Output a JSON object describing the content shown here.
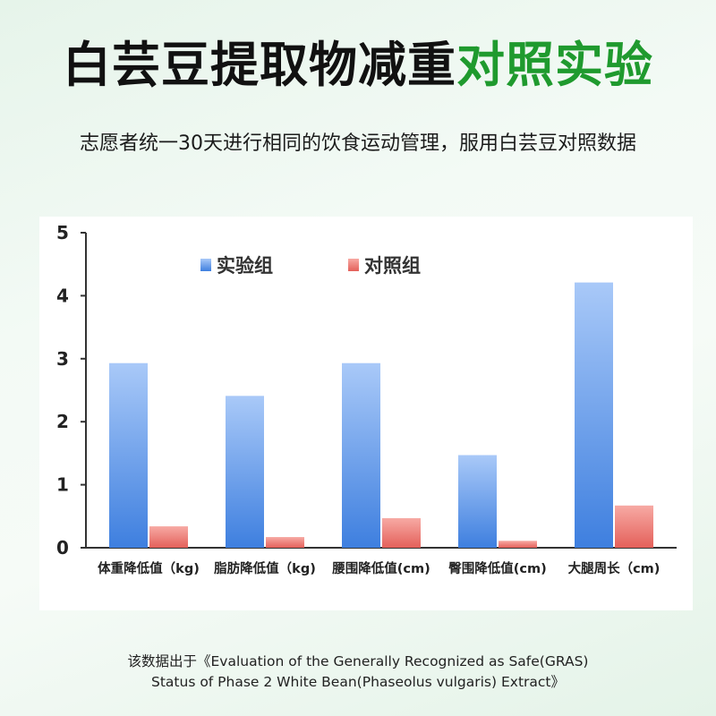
{
  "header": {
    "title_black": "白芸豆提取物减重",
    "title_green": "对照实验",
    "subtitle": "志愿者统一30天进行相同的饮食运动管理，服用白芸豆对照数据"
  },
  "colors": {
    "title_green": "#1f9a2e",
    "experimental_top": "#a9c9f8",
    "experimental_bottom": "#3e7fdf",
    "control_top": "#f7aaa4",
    "control_bottom": "#e4605a"
  },
  "chart_data": {
    "type": "bar",
    "categories": [
      "体重降低值（kg)",
      "脂肪降低值（kg)",
      "腰围降低值(cm)",
      "臀围降低值(cm)",
      "大腿周长（cm)"
    ],
    "series": [
      {
        "name": "实验组",
        "values": [
          2.93,
          2.41,
          2.93,
          1.47,
          4.21
        ]
      },
      {
        "name": "对照组",
        "values": [
          0.34,
          0.17,
          0.47,
          0.11,
          0.67
        ]
      }
    ],
    "yticks": [
      "0",
      "1",
      "2",
      "3",
      "4",
      "5"
    ],
    "ylim": [
      0,
      5
    ],
    "legend_position": "top-left",
    "grid": false
  },
  "footnote": {
    "line1": "该数据出于《Evaluation of the Generally Recognized as Safe(GRAS)",
    "line2": "Status of Phase 2 White Bean(Phaseolus vulgaris) Extract》"
  }
}
